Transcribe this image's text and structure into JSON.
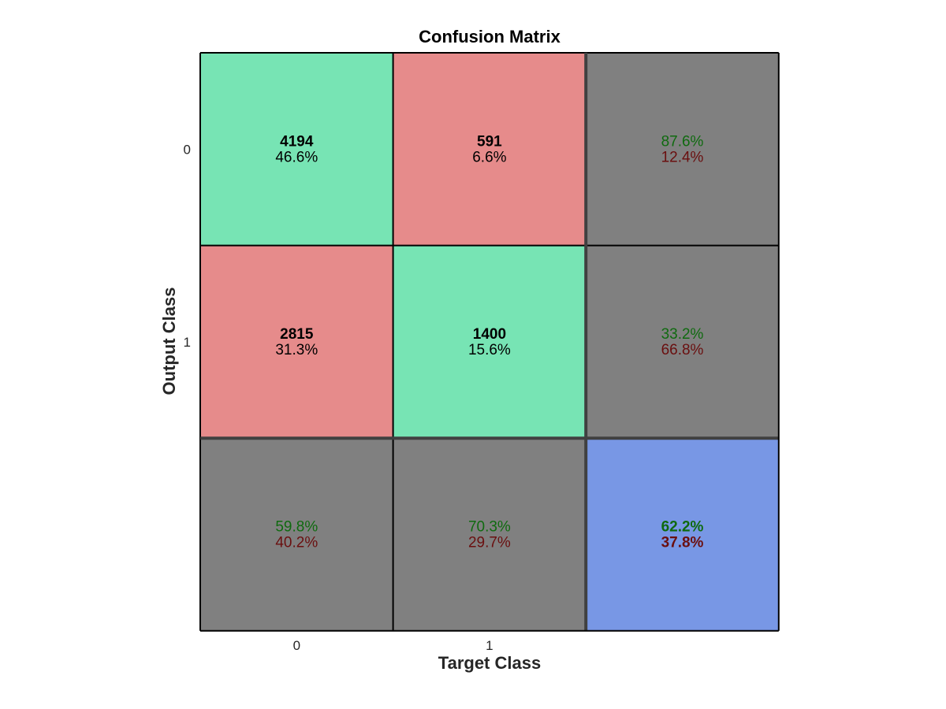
{
  "chart_data": {
    "type": "heatmap",
    "title": "Confusion Matrix",
    "xlabel": "Target Class",
    "ylabel": "Output Class",
    "x_tick_labels": [
      "0",
      "1"
    ],
    "y_tick_labels": [
      "0",
      "1"
    ],
    "matrix": [
      [
        4194,
        591
      ],
      [
        2815,
        1400
      ]
    ],
    "matrix_percent": [
      [
        "46.6%",
        "6.6%"
      ],
      [
        "31.3%",
        "15.6%"
      ]
    ],
    "row_summary": [
      {
        "correct": "87.6%",
        "incorrect": "12.4%"
      },
      {
        "correct": "33.2%",
        "incorrect": "66.8%"
      }
    ],
    "column_summary": [
      {
        "correct": "59.8%",
        "incorrect": "40.2%"
      },
      {
        "correct": "70.3%",
        "incorrect": "29.7%"
      }
    ],
    "overall": {
      "correct": "62.2%",
      "incorrect": "37.8%"
    },
    "colors": {
      "correct_cell": "#77e4b4",
      "incorrect_cell": "#e68b8b",
      "summary_cell": "#808080",
      "overall_cell": "#7897e5",
      "correct_text": "#0f6a0f",
      "incorrect_text": "#6a0f0f",
      "grid_line": "#000000",
      "separator_line": "#404040"
    }
  }
}
